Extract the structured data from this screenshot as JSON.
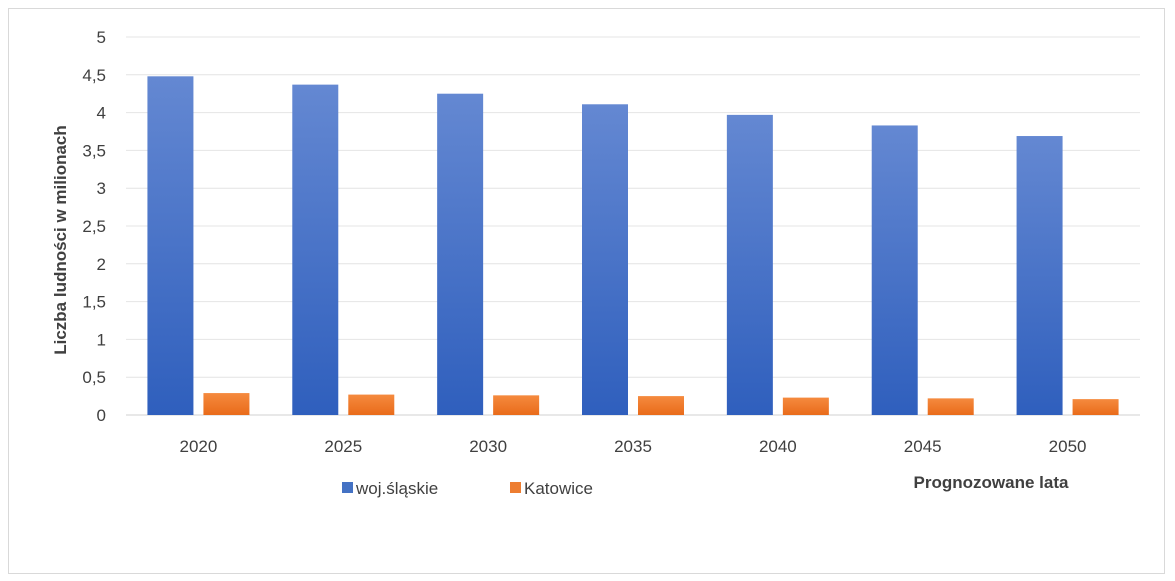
{
  "chart_data": {
    "type": "bar",
    "categories": [
      "2020",
      "2025",
      "2030",
      "2035",
      "2040",
      "2045",
      "2050"
    ],
    "series": [
      {
        "name": "woj.śląskie",
        "values": [
          4.48,
          4.37,
          4.25,
          4.11,
          3.97,
          3.83,
          3.69
        ],
        "color": "#4472c4"
      },
      {
        "name": "Katowice",
        "values": [
          0.29,
          0.27,
          0.26,
          0.25,
          0.23,
          0.22,
          0.21
        ],
        "color": "#ed7d31"
      }
    ],
    "title": "",
    "xlabel": "Prognozowane lata",
    "ylabel": "Liczba ludności w milionach",
    "ylim": [
      0,
      5
    ],
    "yticks": [
      "0",
      "0,5",
      "1",
      "1,5",
      "2",
      "2,5",
      "3",
      "3,5",
      "4",
      "4,5",
      "5"
    ],
    "grid": true,
    "legend": "bottom"
  }
}
